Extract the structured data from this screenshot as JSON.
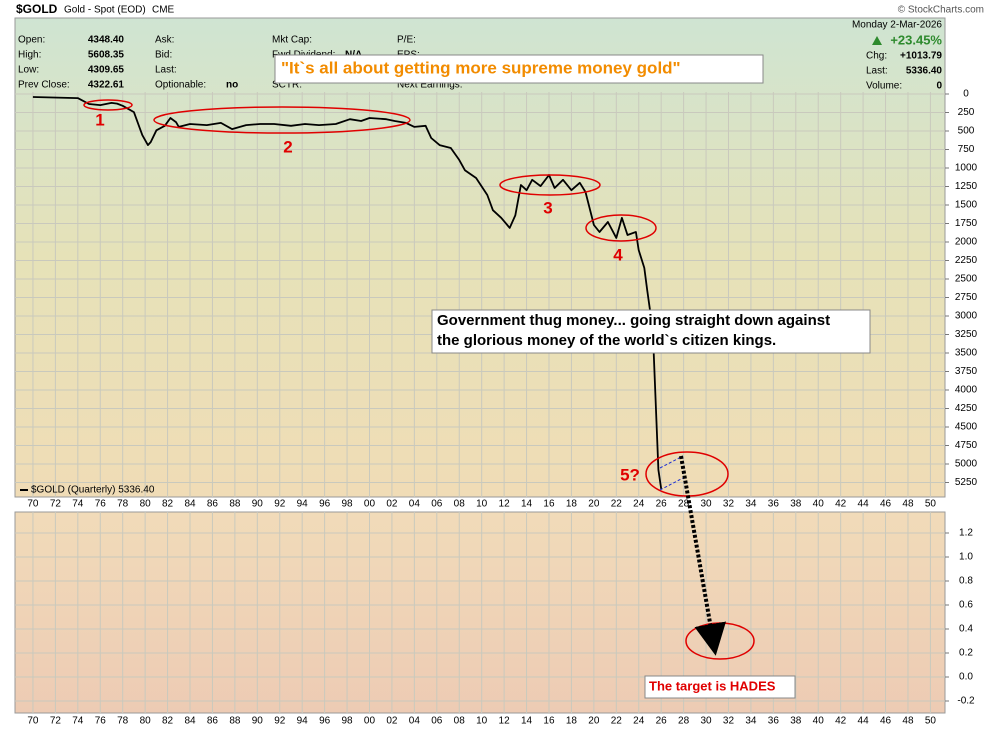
{
  "header": {
    "symbol": "$GOLD",
    "name": "Gold - Spot (EOD)",
    "exchange": "CME",
    "copyright": "© StockCharts.com"
  },
  "quote": {
    "columns": [
      [
        {
          "label": "Open:",
          "value": "4348.40"
        },
        {
          "label": "High:",
          "value": "5608.35"
        },
        {
          "label": "Low:",
          "value": "4309.65"
        },
        {
          "label": "Prev Close:",
          "value": "4322.61"
        }
      ],
      [
        {
          "label": "Ask:"
        },
        {
          "label": "Bid:"
        },
        {
          "label": "Last:"
        },
        {
          "label": "Optionable:",
          "value": "no"
        }
      ],
      [
        {
          "label": "Mkt Cap:"
        },
        {
          "label": "Fwd Dividend:",
          "value": "N/A"
        },
        {
          "label": "SCTR:"
        }
      ],
      [
        {
          "label": "P/E:"
        },
        {
          "label": "EPS:"
        },
        {
          "label": "Next Earnings:"
        }
      ]
    ],
    "date": "Monday  2-Mar-2026",
    "change_pct": "+23.45%",
    "right": [
      {
        "label": "Chg:",
        "value": "+1013.79"
      },
      {
        "label": "Last:",
        "value": "5336.40"
      },
      {
        "label": "Volume:",
        "value": "0"
      }
    ]
  },
  "chart_data": [
    {
      "type": "line",
      "xlim": [
        1968.4,
        2051.3
      ],
      "xticks": [
        {
          "value": 1970,
          "label": "70"
        },
        {
          "value": 1972,
          "label": "72"
        },
        {
          "value": 1974,
          "label": "74"
        },
        {
          "value": 1976,
          "label": "76"
        },
        {
          "value": 1978,
          "label": "78"
        },
        {
          "value": 1980,
          "label": "80"
        },
        {
          "value": 1982,
          "label": "82"
        },
        {
          "value": 1984,
          "label": "84"
        },
        {
          "value": 1986,
          "label": "86"
        },
        {
          "value": 1988,
          "label": "88"
        },
        {
          "value": 1990,
          "label": "90"
        },
        {
          "value": 1992,
          "label": "92"
        },
        {
          "value": 1994,
          "label": "94"
        },
        {
          "value": 1996,
          "label": "96"
        },
        {
          "value": 1998,
          "label": "98"
        },
        {
          "value": 2000,
          "label": "00"
        },
        {
          "value": 2002,
          "label": "02"
        },
        {
          "value": 2004,
          "label": "04"
        },
        {
          "value": 2006,
          "label": "06"
        },
        {
          "value": 2008,
          "label": "08"
        },
        {
          "value": 2010,
          "label": "10"
        },
        {
          "value": 2012,
          "label": "12"
        },
        {
          "value": 2014,
          "label": "14"
        },
        {
          "value": 2016,
          "label": "16"
        },
        {
          "value": 2018,
          "label": "18"
        },
        {
          "value": 2020,
          "label": "20"
        },
        {
          "value": 2022,
          "label": "22"
        },
        {
          "value": 2024,
          "label": "24"
        },
        {
          "value": 2026,
          "label": "26"
        },
        {
          "value": 2028,
          "label": "28"
        },
        {
          "value": 2030,
          "label": "30"
        },
        {
          "value": 2032,
          "label": "32"
        },
        {
          "value": 2034,
          "label": "34"
        },
        {
          "value": 2036,
          "label": "36"
        },
        {
          "value": 2038,
          "label": "38"
        },
        {
          "value": 2040,
          "label": "40"
        },
        {
          "value": 2042,
          "label": "42"
        },
        {
          "value": 2044,
          "label": "44"
        },
        {
          "value": 2046,
          "label": "46"
        },
        {
          "value": 2048,
          "label": "48"
        },
        {
          "value": 2050,
          "label": "50"
        }
      ],
      "ylim": [
        -27,
        5446
      ],
      "y_inverted": true,
      "yticks": [
        0,
        250,
        500,
        750,
        1000,
        1250,
        1500,
        1750,
        2000,
        2250,
        2500,
        2750,
        3000,
        3250,
        3500,
        3750,
        4000,
        4250,
        4500,
        4750,
        5000,
        5250
      ],
      "grid": true,
      "legend_position": "lower left",
      "x": [
        1970,
        1974,
        1975,
        1976,
        1977,
        1977.5,
        1978,
        1979,
        1979.75,
        1980.25,
        1980.5,
        1981,
        1981.75,
        1982.25,
        1982.75,
        1983,
        1984,
        1985.5,
        1986.75,
        1987.75,
        1989,
        1990.25,
        1991.5,
        1993,
        1994.25,
        1995.5,
        1997,
        1998.25,
        1999.25,
        2000,
        2001.5,
        2002.25,
        2003.25,
        2004,
        2005,
        2005.5,
        2006.25,
        2007.25,
        2008,
        2008.5,
        2009.5,
        2010.5,
        2011,
        2011.75,
        2012.5,
        2013,
        2013.5,
        2014,
        2014.5,
        2015.25,
        2016,
        2016.5,
        2017.25,
        2018,
        2018.75,
        2019.25,
        2020,
        2020.5,
        2021.25,
        2022,
        2022.5,
        2023,
        2023.75,
        2024,
        2024.5,
        2024.75,
        2025.25,
        2025.5,
        2025.75,
        2026
      ],
      "series": [
        {
          "name": "$GOLD (Quarterly) 5336.40",
          "color": "#000000",
          "values": [
            40,
            55,
            135,
            150,
            120,
            130,
            160,
            245,
            555,
            690,
            650,
            490,
            430,
            325,
            380,
            445,
            405,
            420,
            390,
            475,
            420,
            405,
            405,
            430,
            405,
            420,
            405,
            340,
            365,
            325,
            340,
            365,
            390,
            445,
            430,
            595,
            690,
            730,
            890,
            1030,
            1135,
            1365,
            1570,
            1675,
            1810,
            1640,
            1230,
            1300,
            1160,
            1245,
            1095,
            1270,
            1160,
            1300,
            1200,
            1325,
            1770,
            1865,
            1730,
            1945,
            1675,
            1905,
            1865,
            2110,
            2350,
            2650,
            3190,
            4135,
            5080,
            5336.4
          ]
        }
      ],
      "annotations": [
        "1",
        "2",
        "3",
        "4",
        "5?"
      ],
      "callouts": {
        "quote": "\"It`s all about getting more supreme money gold\"",
        "thesis": [
          "Government thug money... going straight down against",
          "the glorious money of the world`s citizen kings."
        ],
        "target": "The target is HADES"
      }
    },
    {
      "type": "panel",
      "xlim": [
        1968.4,
        2051.3
      ],
      "xticks": [
        {
          "value": 1970,
          "label": "70"
        },
        {
          "value": 1972,
          "label": "72"
        },
        {
          "value": 1974,
          "label": "74"
        },
        {
          "value": 1976,
          "label": "76"
        },
        {
          "value": 1978,
          "label": "78"
        },
        {
          "value": 1980,
          "label": "80"
        },
        {
          "value": 1982,
          "label": "82"
        },
        {
          "value": 1984,
          "label": "84"
        },
        {
          "value": 1986,
          "label": "86"
        },
        {
          "value": 1988,
          "label": "88"
        },
        {
          "value": 1990,
          "label": "90"
        },
        {
          "value": 1992,
          "label": "92"
        },
        {
          "value": 1994,
          "label": "94"
        },
        {
          "value": 1996,
          "label": "96"
        },
        {
          "value": 1998,
          "label": "98"
        },
        {
          "value": 2000,
          "label": "00"
        },
        {
          "value": 2002,
          "label": "02"
        },
        {
          "value": 2004,
          "label": "04"
        },
        {
          "value": 2006,
          "label": "06"
        },
        {
          "value": 2008,
          "label": "08"
        },
        {
          "value": 2010,
          "label": "10"
        },
        {
          "value": 2012,
          "label": "12"
        },
        {
          "value": 2014,
          "label": "14"
        },
        {
          "value": 2016,
          "label": "16"
        },
        {
          "value": 2018,
          "label": "18"
        },
        {
          "value": 2020,
          "label": "20"
        },
        {
          "value": 2022,
          "label": "22"
        },
        {
          "value": 2024,
          "label": "24"
        },
        {
          "value": 2026,
          "label": "26"
        },
        {
          "value": 2028,
          "label": "28"
        },
        {
          "value": 2030,
          "label": "30"
        },
        {
          "value": 2032,
          "label": "32"
        },
        {
          "value": 2034,
          "label": "34"
        },
        {
          "value": 2036,
          "label": "36"
        },
        {
          "value": 2038,
          "label": "38"
        },
        {
          "value": 2040,
          "label": "40"
        },
        {
          "value": 2042,
          "label": "42"
        },
        {
          "value": 2044,
          "label": "44"
        },
        {
          "value": 2046,
          "label": "46"
        },
        {
          "value": 2048,
          "label": "48"
        },
        {
          "value": 2050,
          "label": "50"
        }
      ],
      "ylim": [
        -0.3,
        1.375
      ],
      "yticks": [
        1.2,
        {
          "value": 1,
          "label": "1.0"
        },
        0.8,
        0.6,
        0.4,
        0.2,
        {
          "value": 0,
          "label": "0.0"
        },
        -0.2
      ],
      "grid": true
    }
  ]
}
